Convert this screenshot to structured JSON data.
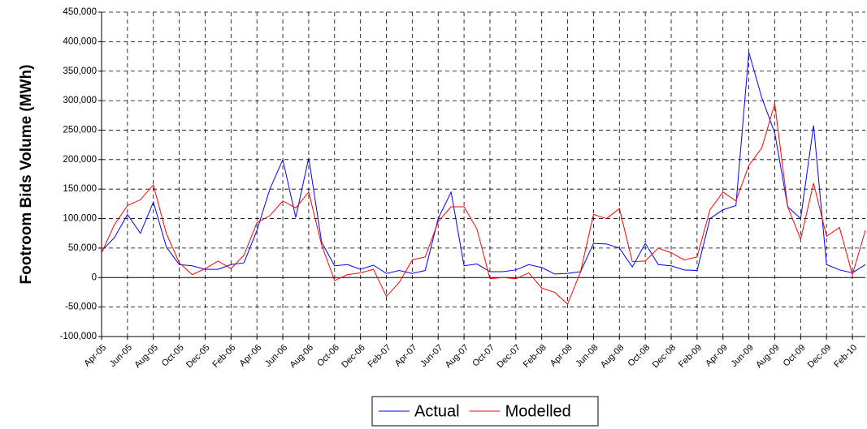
{
  "chart_data": {
    "type": "line",
    "y_label": "Footroom Bids Volume (MWh)",
    "categories": [
      "Apr-05",
      null,
      "Jun-05",
      null,
      "Aug-05",
      null,
      "Oct-05",
      null,
      "Dec-05",
      null,
      "Feb-06",
      null,
      "Apr-06",
      null,
      "Jun-06",
      null,
      "Aug-06",
      null,
      "Oct-06",
      null,
      "Dec-06",
      null,
      "Feb-07",
      null,
      "Apr-07",
      null,
      "Jun-07",
      null,
      "Aug-07",
      null,
      "Oct-07",
      null,
      "Dec-07",
      null,
      "Feb-08",
      null,
      "Apr-08",
      null,
      "Jun-08",
      null,
      "Aug-08",
      null,
      "Oct-08",
      null,
      "Dec-08",
      null,
      "Feb-09",
      null,
      "Apr-09",
      null,
      "Jun-09",
      null,
      "Aug-09",
      null,
      "Oct-09",
      null,
      "Dec-09",
      null,
      "Feb-10",
      null
    ],
    "series": [
      {
        "name": "Actual",
        "color": "#0000ff",
        "values": [
          45000,
          68000,
          107000,
          75000,
          128000,
          52000,
          22000,
          20000,
          14000,
          14000,
          22000,
          25000,
          80000,
          150000,
          200000,
          102000,
          203000,
          60000,
          20000,
          22000,
          14000,
          21000,
          7000,
          12000,
          7000,
          12000,
          100000,
          145000,
          20000,
          23000,
          10000,
          10000,
          13000,
          22000,
          17000,
          6000,
          7000,
          10000,
          58000,
          57000,
          50000,
          18000,
          58000,
          22000,
          20000,
          13000,
          12000,
          100000,
          115000,
          122000,
          382000,
          305000,
          245000,
          120000,
          100000,
          258000,
          22000,
          13000,
          8000,
          22000
        ]
      },
      {
        "name": "Modelled",
        "color": "#ff0000",
        "values": [
          42000,
          90000,
          122000,
          132000,
          157000,
          75000,
          25000,
          5000,
          15000,
          28000,
          15000,
          38000,
          93000,
          105000,
          130000,
          118000,
          145000,
          55000,
          -5000,
          5000,
          8000,
          14000,
          -32000,
          -8000,
          30000,
          35000,
          95000,
          120000,
          120000,
          82000,
          -2000,
          0,
          -2000,
          8000,
          -18000,
          -25000,
          -45000,
          10000,
          107000,
          100000,
          117000,
          27000,
          28000,
          50000,
          42000,
          30000,
          35000,
          115000,
          145000,
          130000,
          190000,
          220000,
          295000,
          120000,
          65000,
          160000,
          70000,
          85000,
          5000,
          80000
        ]
      }
    ],
    "ylim": [
      -100000,
      450000
    ],
    "yticks": [
      {
        "value": -100000,
        "label": "-100,000"
      },
      {
        "value": -50000,
        "label": "-50,000"
      },
      0,
      {
        "value": 50000,
        "label": "50,000"
      },
      {
        "value": 100000,
        "label": "100,000"
      },
      {
        "value": 150000,
        "label": "150,000"
      },
      {
        "value": 200000,
        "label": "200,000"
      },
      {
        "value": 250000,
        "label": "250,000"
      },
      {
        "value": 300000,
        "label": "300,000"
      },
      {
        "value": 350000,
        "label": "350,000"
      },
      {
        "value": 400000,
        "label": "400,000"
      },
      {
        "value": 450000,
        "label": "450,000"
      }
    ],
    "grid": true,
    "legend": "bottom"
  }
}
